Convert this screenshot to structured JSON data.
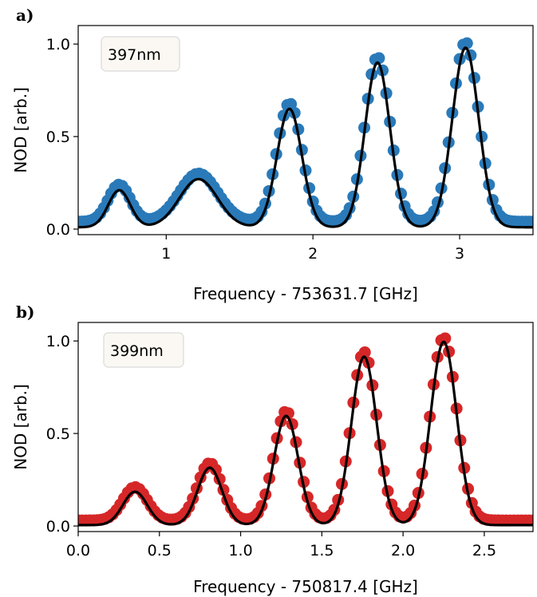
{
  "colors": {
    "panel_a_points": "#2a7ab9",
    "panel_b_points": "#d62728",
    "fit_line": "#000000",
    "legend_bg": "#fbf8f3",
    "legend_border": "#d9d9d9"
  },
  "chart_data": [
    {
      "panel": "a)",
      "type": "scatter",
      "title": "",
      "legend_label": "397nm",
      "legend_position": "top-left",
      "xlabel": "Frequency - 753631.7 [GHz]",
      "ylabel": "NOD [arb.]",
      "xlim": [
        0.4,
        3.5
      ],
      "ylim": [
        -0.03,
        1.1
      ],
      "xticks": [
        1,
        2,
        3
      ],
      "xtick_labels": [
        "1",
        "2",
        "3"
      ],
      "yticks": [
        0.0,
        0.5,
        1.0
      ],
      "ytick_labels": [
        "0.0",
        "0.5",
        "1.0"
      ],
      "grid": false,
      "baseline": 0.01,
      "point_baseline": 0.04,
      "peaks": [
        {
          "center": 0.68,
          "amplitude": 0.2,
          "width": 0.075
        },
        {
          "center": 1.22,
          "amplitude": 0.26,
          "width": 0.13
        },
        {
          "center": 1.84,
          "amplitude": 0.64,
          "width": 0.085
        },
        {
          "center": 2.44,
          "amplitude": 0.89,
          "width": 0.085
        },
        {
          "center": 3.04,
          "amplitude": 0.97,
          "width": 0.09
        }
      ],
      "series": [
        {
          "kind": "points",
          "x_start": 0.4,
          "x_end": 3.5,
          "count": 125
        },
        {
          "kind": "fit_line",
          "x_start": 0.4,
          "x_end": 3.5
        }
      ]
    },
    {
      "panel": "b)",
      "type": "scatter",
      "title": "",
      "legend_label": "399nm",
      "legend_position": "top-left",
      "xlabel": "Frequency - 750817.4 [GHz]",
      "ylabel": "NOD [arb.]",
      "xlim": [
        0.0,
        2.8
      ],
      "ylim": [
        -0.03,
        1.1
      ],
      "xticks": [
        0.0,
        0.5,
        1.0,
        1.5,
        2.0,
        2.5
      ],
      "xtick_labels": [
        "0.0",
        "0.5",
        "1.0",
        "1.5",
        "2.0",
        "2.5"
      ],
      "yticks": [
        0.0,
        0.5,
        1.0
      ],
      "ytick_labels": [
        "0.0",
        "0.5",
        "1.0"
      ],
      "grid": false,
      "baseline": 0.005,
      "point_baseline": 0.03,
      "peaks": [
        {
          "center": 0.35,
          "amplitude": 0.18,
          "width": 0.075
        },
        {
          "center": 0.81,
          "amplitude": 0.31,
          "width": 0.075
        },
        {
          "center": 1.28,
          "amplitude": 0.59,
          "width": 0.075
        },
        {
          "center": 1.76,
          "amplitude": 0.91,
          "width": 0.078
        },
        {
          "center": 2.25,
          "amplitude": 0.99,
          "width": 0.08
        }
      ],
      "series": [
        {
          "kind": "points",
          "x_start": 0.0,
          "x_end": 2.8,
          "count": 120
        },
        {
          "kind": "fit_line",
          "x_start": 0.0,
          "x_end": 2.8
        }
      ]
    }
  ]
}
